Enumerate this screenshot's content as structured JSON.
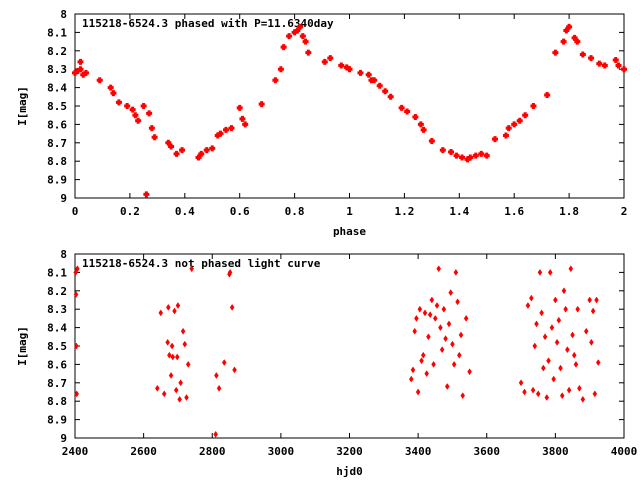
{
  "chart_data": [
    {
      "type": "scatter",
      "title": "115218-6524.3 phased with P=11.6340day",
      "xlabel": "phase",
      "ylabel": "I[mag]",
      "xlim": [
        0,
        2
      ],
      "ylim": [
        8,
        9
      ],
      "y_inverted": true,
      "xticks": [
        "0",
        "0.2",
        "0.4",
        "0.6",
        "0.8",
        "1",
        "1.2",
        "1.4",
        "1.6",
        "1.8",
        "2"
      ],
      "yticks": [
        "8",
        "8.1",
        "8.2",
        "8.3",
        "8.4",
        "8.5",
        "8.6",
        "8.7",
        "8.8",
        "8.9",
        "9"
      ],
      "marker": "plus-bold",
      "color": "#ff0000",
      "series": [
        {
          "x": [
            0.0,
            0.01,
            0.02,
            0.02,
            0.03,
            0.04,
            0.09,
            0.13,
            0.14,
            0.16,
            0.19,
            0.21,
            0.22,
            0.23,
            0.25,
            0.27,
            0.28,
            0.29,
            0.34,
            0.35,
            0.37,
            0.39,
            0.45,
            0.46,
            0.48,
            0.5,
            0.52,
            0.53,
            0.55,
            0.57,
            0.6,
            0.61,
            0.62,
            0.68,
            0.73,
            0.75,
            0.76,
            0.78,
            0.8,
            0.81,
            0.82,
            0.83,
            0.84,
            0.85,
            0.91,
            0.93,
            0.97,
            0.99,
            1.0,
            1.04,
            1.07,
            1.08,
            1.09,
            1.11,
            1.13,
            1.15,
            1.19,
            1.21,
            1.24,
            1.26,
            1.27,
            1.3,
            1.34,
            1.37,
            1.39,
            1.41,
            1.43,
            1.44,
            1.46,
            1.48,
            1.5,
            1.53,
            1.57,
            1.58,
            1.6,
            1.62,
            1.64,
            1.67,
            1.72,
            1.75,
            1.78,
            1.79,
            1.8,
            1.82,
            1.83,
            1.85,
            1.88,
            1.91,
            1.93,
            1.97,
            1.98,
            2.0,
            0.26
          ],
          "y": [
            8.32,
            8.31,
            8.26,
            8.3,
            8.33,
            8.32,
            8.36,
            8.4,
            8.43,
            8.48,
            8.5,
            8.52,
            8.55,
            8.58,
            8.5,
            8.54,
            8.62,
            8.67,
            8.7,
            8.72,
            8.76,
            8.74,
            8.78,
            8.76,
            8.74,
            8.73,
            8.66,
            8.65,
            8.63,
            8.62,
            8.51,
            8.57,
            8.6,
            8.49,
            8.36,
            8.3,
            8.18,
            8.12,
            8.1,
            8.09,
            8.07,
            8.12,
            8.15,
            8.21,
            8.26,
            8.24,
            8.28,
            8.29,
            8.3,
            8.32,
            8.33,
            8.36,
            8.36,
            8.39,
            8.42,
            8.45,
            8.51,
            8.53,
            8.56,
            8.6,
            8.63,
            8.69,
            8.74,
            8.75,
            8.77,
            8.78,
            8.79,
            8.78,
            8.77,
            8.76,
            8.77,
            8.68,
            8.66,
            8.62,
            8.6,
            8.58,
            8.55,
            8.5,
            8.44,
            8.21,
            8.15,
            8.09,
            8.07,
            8.13,
            8.15,
            8.22,
            8.24,
            8.27,
            8.28,
            8.25,
            8.28,
            8.3,
            8.98
          ]
        }
      ]
    },
    {
      "type": "scatter",
      "title": "115218-6524.3 not phased light curve",
      "xlabel": "hjd0",
      "ylabel": "I[mag]",
      "xlim": [
        2400,
        4000
      ],
      "ylim": [
        8,
        9
      ],
      "y_inverted": true,
      "xticks": [
        "2400",
        "2600",
        "2800",
        "3000",
        "3200",
        "3400",
        "3600",
        "3800",
        "4000"
      ],
      "yticks": [
        "8",
        "8.1",
        "8.2",
        "8.3",
        "8.4",
        "8.5",
        "8.6",
        "8.7",
        "8.8",
        "8.9",
        "9"
      ],
      "marker": "diamond",
      "color": "#ff0000",
      "series": [
        {
          "x": [
            2402,
            2403,
            2404,
            2405,
            2407,
            2640,
            2650,
            2660,
            2670,
            2672,
            2675,
            2680,
            2683,
            2685,
            2690,
            2695,
            2698,
            2700,
            2705,
            2708,
            2715,
            2720,
            2725,
            2730,
            2740,
            2850,
            2810,
            2812,
            2820,
            2835,
            2852,
            2858,
            2865,
            3380,
            3385,
            3390,
            3395,
            3400,
            3405,
            3410,
            3415,
            3420,
            3425,
            3430,
            3435,
            3440,
            3445,
            3450,
            3455,
            3460,
            3465,
            3470,
            3475,
            3480,
            3485,
            3490,
            3495,
            3500,
            3505,
            3510,
            3515,
            3520,
            3525,
            3530,
            3540,
            3550,
            3700,
            3710,
            3720,
            3730,
            3735,
            3740,
            3745,
            3750,
            3755,
            3760,
            3765,
            3770,
            3775,
            3780,
            3785,
            3790,
            3795,
            3800,
            3805,
            3810,
            3815,
            3820,
            3825,
            3830,
            3835,
            3840,
            3845,
            3850,
            3855,
            3860,
            3865,
            3870,
            3880,
            3890,
            3900,
            3905,
            3910,
            3915,
            3920,
            3925
          ],
          "y": [
            8.1,
            8.22,
            8.5,
            8.76,
            8.08,
            8.73,
            8.32,
            8.76,
            8.48,
            8.29,
            8.55,
            8.66,
            8.5,
            8.56,
            8.31,
            8.74,
            8.56,
            8.28,
            8.79,
            8.7,
            8.42,
            8.49,
            8.78,
            8.6,
            8.08,
            8.11,
            8.98,
            8.66,
            8.73,
            8.59,
            8.1,
            8.29,
            8.63,
            8.68,
            8.63,
            8.42,
            8.35,
            8.75,
            8.3,
            8.58,
            8.55,
            8.32,
            8.65,
            8.45,
            8.33,
            8.25,
            8.6,
            8.35,
            8.28,
            8.08,
            8.4,
            8.52,
            8.3,
            8.46,
            8.72,
            8.38,
            8.21,
            8.49,
            8.6,
            8.1,
            8.26,
            8.55,
            8.44,
            8.77,
            8.35,
            8.64,
            8.7,
            8.75,
            8.28,
            8.24,
            8.74,
            8.5,
            8.38,
            8.76,
            8.1,
            8.32,
            8.62,
            8.45,
            8.78,
            8.58,
            8.1,
            8.4,
            8.68,
            8.25,
            8.48,
            8.36,
            8.62,
            8.77,
            8.2,
            8.3,
            8.52,
            8.74,
            8.08,
            8.44,
            8.55,
            8.6,
            8.3,
            8.73,
            8.79,
            8.42,
            8.25,
            8.48,
            8.31,
            8.76,
            8.25,
            8.59
          ]
        }
      ]
    }
  ]
}
